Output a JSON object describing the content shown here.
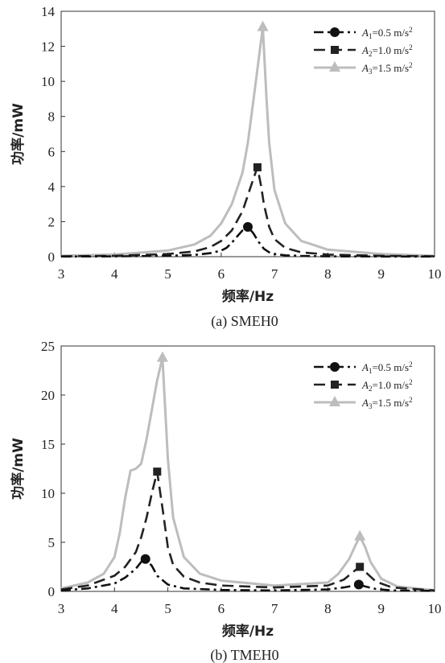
{
  "chart_data": [
    {
      "type": "line",
      "caption": "(a) SMEH0",
      "xlabel": "频率/Hz",
      "ylabel": "功率/mW",
      "xlim": [
        3,
        10
      ],
      "ylim": [
        0,
        14
      ],
      "xticks": [
        3,
        4,
        5,
        6,
        7,
        8,
        9,
        10
      ],
      "yticks": [
        0,
        2,
        4,
        6,
        8,
        10,
        12,
        14
      ],
      "legend_position": "top-right",
      "series": [
        {
          "name": "A1=0.5 m/s2",
          "legend": {
            "sym": "A",
            "sub": "1",
            "val": "=0.5 m/s",
            "sup": "2"
          },
          "style": "dashdot",
          "color": "#111111",
          "marker": "circle",
          "marker_point": [
            6.5,
            1.7
          ],
          "x": [
            3,
            4,
            5,
            5.5,
            5.8,
            6,
            6.1,
            6.2,
            6.3,
            6.4,
            6.5,
            6.6,
            6.7,
            6.8,
            6.9,
            7,
            7.2,
            7.5,
            8,
            9,
            10
          ],
          "y": [
            0.01,
            0.02,
            0.05,
            0.1,
            0.2,
            0.35,
            0.5,
            0.8,
            1.15,
            1.5,
            1.7,
            1.35,
            0.85,
            0.45,
            0.25,
            0.15,
            0.08,
            0.04,
            0.02,
            0.01,
            0.01
          ]
        },
        {
          "name": "A2=1.0 m/s2",
          "legend": {
            "sym": "A",
            "sub": "2",
            "val": "=1.0 m/s",
            "sup": "2"
          },
          "style": "dash",
          "color": "#222222",
          "marker": "square",
          "marker_point": [
            6.68,
            5.1
          ],
          "x": [
            3,
            4,
            5,
            5.5,
            5.8,
            6,
            6.2,
            6.4,
            6.5,
            6.6,
            6.68,
            6.75,
            6.8,
            6.9,
            7,
            7.2,
            7.5,
            8,
            9,
            10
          ],
          "y": [
            0.02,
            0.05,
            0.15,
            0.3,
            0.55,
            0.9,
            1.5,
            2.6,
            3.5,
            4.4,
            5.1,
            4.0,
            3.0,
            1.7,
            1.0,
            0.5,
            0.25,
            0.12,
            0.05,
            0.02
          ]
        },
        {
          "name": "A3=1.5 m/s2",
          "legend": {
            "sym": "A",
            "sub": "3",
            "val": "=1.5 m/s",
            "sup": "2"
          },
          "style": "solid",
          "color": "#bdbdbd",
          "marker": "triangle",
          "marker_point": [
            6.78,
            13.1
          ],
          "x": [
            3,
            4,
            5,
            5.5,
            5.8,
            6,
            6.2,
            6.4,
            6.5,
            6.6,
            6.7,
            6.78,
            6.85,
            6.9,
            7,
            7.2,
            7.5,
            8,
            9,
            10
          ],
          "y": [
            0.05,
            0.12,
            0.35,
            0.7,
            1.2,
            1.9,
            3.0,
            4.8,
            6.5,
            8.8,
            11.2,
            13.1,
            9.0,
            6.5,
            3.8,
            1.9,
            0.9,
            0.4,
            0.15,
            0.05
          ]
        }
      ]
    },
    {
      "type": "line",
      "caption": "(b) TMEH0",
      "xlabel": "频率/Hz",
      "ylabel": "功率/mW",
      "xlim": [
        3,
        10
      ],
      "ylim": [
        0,
        25
      ],
      "xticks": [
        3,
        4,
        5,
        6,
        7,
        8,
        9,
        10
      ],
      "yticks": [
        0,
        5,
        10,
        15,
        20,
        25
      ],
      "legend_position": "top-right",
      "series": [
        {
          "name": "A1=0.5 m/s2",
          "legend": {
            "sym": "A",
            "sub": "1",
            "val": "=0.5 m/s",
            "sup": "2"
          },
          "style": "dashdot",
          "color": "#111111",
          "marker": "circle",
          "marker_points": [
            [
              4.58,
              3.3
            ],
            [
              8.58,
              0.7
            ]
          ],
          "x": [
            3,
            3.5,
            4,
            4.2,
            4.4,
            4.5,
            4.58,
            4.7,
            4.8,
            5,
            5.3,
            6,
            7,
            8,
            8.3,
            8.5,
            8.58,
            8.7,
            8.9,
            9.2,
            10
          ],
          "y": [
            0.1,
            0.3,
            0.8,
            1.4,
            2.3,
            3.0,
            3.3,
            2.6,
            1.6,
            0.7,
            0.3,
            0.15,
            0.1,
            0.2,
            0.4,
            0.6,
            0.7,
            0.5,
            0.25,
            0.1,
            0.05
          ]
        },
        {
          "name": "A2=1.0 m/s2",
          "legend": {
            "sym": "A",
            "sub": "2",
            "val": "=1.0 m/s",
            "sup": "2"
          },
          "style": "dash",
          "color": "#222222",
          "marker": "square",
          "marker_points": [
            [
              4.8,
              12.2
            ],
            [
              8.6,
              2.5
            ]
          ],
          "x": [
            3,
            3.5,
            4,
            4.2,
            4.4,
            4.5,
            4.6,
            4.7,
            4.8,
            4.9,
            5,
            5.1,
            5.3,
            5.6,
            6,
            7,
            8,
            8.3,
            8.5,
            8.6,
            8.7,
            8.9,
            9.2,
            10
          ],
          "y": [
            0.2,
            0.6,
            1.6,
            2.5,
            4.0,
            5.5,
            7.5,
            10.0,
            12.2,
            8.5,
            4.5,
            2.7,
            1.5,
            0.9,
            0.6,
            0.4,
            0.6,
            1.2,
            2.1,
            2.5,
            2.0,
            1.0,
            0.4,
            0.1
          ]
        },
        {
          "name": "A3=1.5 m/s2",
          "legend": {
            "sym": "A",
            "sub": "3",
            "val": "=1.5 m/s",
            "sup": "2"
          },
          "style": "solid",
          "color": "#bdbdbd",
          "marker": "triangle",
          "marker_points": [
            [
              4.9,
              23.8
            ],
            [
              8.6,
              5.6
            ]
          ],
          "x": [
            3,
            3.5,
            3.8,
            4,
            4.1,
            4.2,
            4.3,
            4.4,
            4.5,
            4.6,
            4.7,
            4.8,
            4.9,
            5,
            5.1,
            5.3,
            5.6,
            6,
            7,
            8,
            8.2,
            8.4,
            8.5,
            8.6,
            8.7,
            8.8,
            9,
            9.3,
            10
          ],
          "y": [
            0.3,
            0.9,
            1.8,
            3.5,
            6,
            9.5,
            12.3,
            12.5,
            13.0,
            15.5,
            18.5,
            21.5,
            23.8,
            13.5,
            7.5,
            3.5,
            1.8,
            1.1,
            0.6,
            0.9,
            1.8,
            3.3,
            4.5,
            5.6,
            4.5,
            3.0,
            1.3,
            0.5,
            0.1
          ]
        }
      ]
    }
  ]
}
